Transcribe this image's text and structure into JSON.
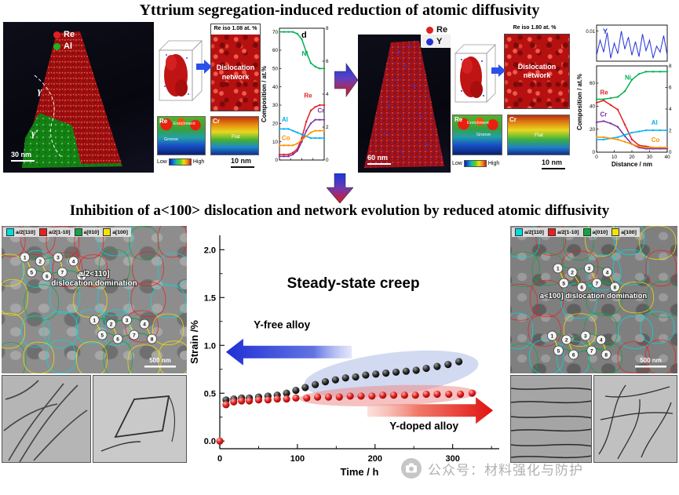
{
  "titles": {
    "top": "Yttrium segregation-induced reduction of atomic diffusivity",
    "bottom": "Inhibition of a<100> dislocation and network evolution by reduced atomic diffusivity"
  },
  "watermark": {
    "text": "公众号：材料强化与防护"
  },
  "panels": {
    "apt_left": {
      "legend": [
        {
          "label": "Re",
          "color": "#e02020"
        },
        {
          "label": "Al",
          "color": "#1db31d"
        }
      ],
      "phase_labels": [
        "γ",
        "γ′"
      ],
      "scale_label": "30 nm"
    },
    "iso_left": {
      "iso_title": "Re iso 1.08 at. %",
      "network_label_line1": "Dislocation",
      "network_label_line2": "network",
      "map_re": {
        "title": "Re",
        "notes": [
          "Enrichment",
          "Groove"
        ]
      },
      "map_cr": {
        "title": "Cr",
        "notes": [
          "Flat"
        ]
      },
      "colorbar": {
        "low": "Low",
        "high": "High"
      },
      "scale_label": "10 nm"
    },
    "apt_right": {
      "legend": [
        {
          "label": "Re",
          "color": "#e02020"
        },
        {
          "label": "Y",
          "color": "#2230d8"
        }
      ],
      "scale_label": "60 nm"
    },
    "iso_right": {
      "iso_title": "Re iso 1.80 at. %",
      "network_label_line1": "Dislocation",
      "network_label_line2": "network",
      "map_re": {
        "title": "Re",
        "notes": [
          "Enrichment",
          "Groove"
        ]
      },
      "map_cr": {
        "title": "Cr",
        "notes": [
          "Flat"
        ]
      },
      "colorbar": {
        "low": "Low",
        "high": "High"
      },
      "scale_label": "10 nm"
    },
    "tem_left": {
      "legend": [
        {
          "label": "a/2[110]",
          "color": "#00dcdc"
        },
        {
          "label": "a/2[1-10]",
          "color": "#e82020"
        },
        {
          "label": "a[010]",
          "color": "#12a343"
        },
        {
          "label": "a[100]",
          "color": "#f2e400"
        }
      ],
      "caption": "a/2<110] dislocation domination",
      "scale_label": "500 nm",
      "node_numbers": [
        1,
        2,
        3,
        4,
        5,
        6,
        7,
        8
      ]
    },
    "tem_right": {
      "legend": [
        {
          "label": "a/2[110]",
          "color": "#00dcdc"
        },
        {
          "label": "a/2[1-10]",
          "color": "#e82020"
        },
        {
          "label": "a[010]",
          "color": "#12a343"
        },
        {
          "label": "a[100]",
          "color": "#f2e400"
        }
      ],
      "caption": "a<100] dislocation domination",
      "scale_label": "500 nm",
      "node_numbers": [
        1,
        2,
        3,
        4,
        5,
        6,
        7,
        8
      ]
    }
  },
  "chart_data": [
    {
      "id": "comp_left",
      "type": "line",
      "panel_label": "d",
      "ylabel": "Composition / at.%",
      "xlim": [
        0,
        40
      ],
      "ylim": [
        0,
        72
      ],
      "yticks": [
        0,
        10,
        20,
        30,
        40,
        50,
        60,
        70
      ],
      "right_ticks": [
        0,
        2,
        4,
        6,
        8
      ],
      "x": [
        0,
        4,
        8,
        12,
        16,
        20,
        24,
        28,
        32,
        36,
        40
      ],
      "series": [
        {
          "name": "Ni",
          "color": "#00b050",
          "values": [
            70,
            70,
            70,
            70,
            69,
            66,
            59,
            53,
            51,
            50,
            50
          ],
          "label_at": [
            20,
            57
          ]
        },
        {
          "name": "Re",
          "color": "#e02020",
          "values": [
            3,
            3,
            3,
            4,
            6,
            12,
            21,
            27,
            29,
            30,
            30
          ],
          "label_at": [
            22,
            34
          ]
        },
        {
          "name": "Cr",
          "color": "#7a30a8",
          "values": [
            2,
            2,
            2,
            3,
            5,
            10,
            16,
            20,
            22,
            22,
            22
          ],
          "label_at": [
            34,
            26
          ]
        },
        {
          "name": "Al",
          "color": "#00b0f0",
          "values": [
            17,
            17,
            17,
            16,
            15,
            14,
            13,
            12,
            12,
            12,
            12
          ],
          "label_at": [
            2,
            21
          ]
        },
        {
          "name": "Co",
          "color": "#ff9000",
          "values": [
            8,
            8,
            8,
            8,
            9,
            11,
            13,
            15,
            16,
            16,
            16
          ],
          "label_at": [
            2,
            11
          ]
        }
      ]
    },
    {
      "id": "comp_right",
      "type": "line",
      "xlabel": "Distance / nm",
      "ylabel": "Composition / at.%",
      "xlim": [
        0,
        40
      ],
      "ylim": [
        0,
        75
      ],
      "xticks": [
        0,
        10,
        20,
        30,
        40
      ],
      "yticks": [
        0,
        20,
        40,
        60
      ],
      "right_ticks": [
        0,
        2,
        4,
        6,
        8
      ],
      "x": [
        0,
        4,
        8,
        12,
        16,
        20,
        24,
        28,
        32,
        36,
        40
      ],
      "series": [
        {
          "name": "Ni",
          "color": "#00b050",
          "values": [
            46,
            46,
            47,
            48,
            53,
            63,
            68,
            70,
            70,
            70,
            70
          ],
          "label_at": [
            16,
            63
          ]
        },
        {
          "name": "Re",
          "color": "#e02020",
          "values": [
            43,
            45,
            41,
            37,
            24,
            11,
            6,
            5,
            4,
            4,
            4
          ],
          "label_at": [
            2,
            50
          ]
        },
        {
          "name": "Cr",
          "color": "#7a30a8",
          "values": [
            26,
            27,
            25,
            22,
            14,
            7,
            4,
            3,
            3,
            3,
            3
          ],
          "label_at": [
            2,
            31
          ]
        },
        {
          "name": "Al",
          "color": "#00b0f0",
          "values": [
            11,
            11,
            12,
            13,
            15,
            17,
            18,
            19,
            19,
            19,
            19
          ],
          "label_at": [
            31,
            24
          ]
        },
        {
          "name": "Co",
          "color": "#ff9000",
          "values": [
            13,
            13,
            12,
            11,
            9,
            7,
            5,
            4,
            4,
            4,
            4
          ],
          "label_at": [
            31,
            9
          ]
        }
      ],
      "inset": {
        "name": "Y",
        "color": "#2230d8",
        "ylim": [
          0,
          0.012
        ],
        "ytick_label": "0.01",
        "values": [
          0.002,
          0.007,
          0.003,
          0.0095,
          0.001,
          0.006,
          0.0025,
          0.01,
          0.004,
          0.008,
          0.002,
          0.0065,
          0.0015,
          0.009,
          0.0035,
          0.007,
          0.001,
          0.005,
          0.003,
          0.0085,
          0.002
        ]
      }
    },
    {
      "id": "creep",
      "type": "scatter",
      "title": "Steady-state creep",
      "xlabel": "Time / h",
      "ylabel": "Strain /%",
      "xlim": [
        0,
        360
      ],
      "ylim": [
        -0.08,
        2.15
      ],
      "xticks": [
        0,
        100,
        200,
        300
      ],
      "ytick_labels": [
        "0.0",
        "0.5",
        "1.0",
        "1.5",
        "2.0"
      ],
      "series": [
        {
          "name": "Y-free alloy",
          "marker_color": "#1a1a1a",
          "x": [
            8,
            18,
            28,
            38,
            50,
            62,
            74,
            86,
            98,
            110,
            123,
            136,
            149,
            162,
            175,
            188,
            201,
            214,
            227,
            240,
            253,
            266,
            280,
            294,
            308
          ],
          "y": [
            0.43,
            0.44,
            0.45,
            0.45,
            0.46,
            0.47,
            0.48,
            0.5,
            0.53,
            0.56,
            0.59,
            0.62,
            0.64,
            0.66,
            0.67,
            0.69,
            0.7,
            0.71,
            0.72,
            0.73,
            0.74,
            0.76,
            0.78,
            0.8,
            0.83
          ]
        },
        {
          "name": "Y-doped alloy",
          "marker_color": "#d01818",
          "x": [
            0,
            8,
            18,
            28,
            38,
            50,
            62,
            74,
            86,
            98,
            112,
            126,
            140,
            154,
            168,
            182,
            196,
            210,
            224,
            238,
            252,
            266,
            280,
            295,
            310,
            325
          ],
          "y": [
            0.0,
            0.38,
            0.41,
            0.42,
            0.42,
            0.43,
            0.43,
            0.44,
            0.44,
            0.45,
            0.45,
            0.46,
            0.46,
            0.46,
            0.47,
            0.47,
            0.47,
            0.48,
            0.48,
            0.48,
            0.48,
            0.49,
            0.49,
            0.49,
            0.49,
            0.5
          ]
        }
      ],
      "annotations": {
        "free_label": "Y-free alloy",
        "doped_label": "Y-doped alloy",
        "free_arrow_color": "#2233cc",
        "doped_arrow_color": "#e01212"
      }
    }
  ]
}
